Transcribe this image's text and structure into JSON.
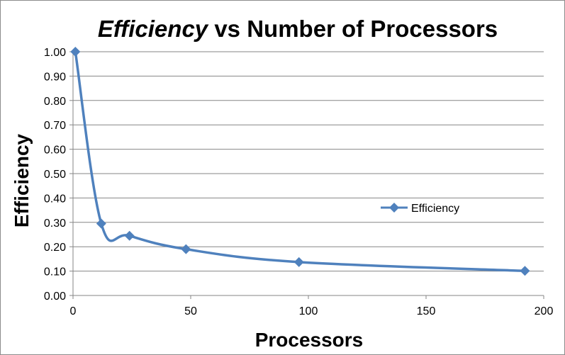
{
  "chart_data": {
    "type": "line",
    "title_em": "Efficiency",
    "title_rest": " vs Number of Processors",
    "xlabel": "Processors",
    "ylabel": "Efficiency",
    "xlim": [
      0,
      200
    ],
    "ylim": [
      0,
      1
    ],
    "x_ticks": [
      "0",
      "50",
      "100",
      "150",
      "200"
    ],
    "x_tick_values": [
      0,
      50,
      100,
      150,
      200
    ],
    "y_ticks": [
      "0.00",
      "0.10",
      "0.20",
      "0.30",
      "0.40",
      "0.50",
      "0.60",
      "0.70",
      "0.80",
      "0.90",
      "1.00"
    ],
    "y_tick_values": [
      0,
      0.1,
      0.2,
      0.3,
      0.4,
      0.5,
      0.6,
      0.7,
      0.8,
      0.9,
      1.0
    ],
    "grid": "horizontal",
    "legend_position": "right",
    "series": [
      {
        "name": "Efficiency",
        "color": "#4f81bd",
        "marker": "diamond",
        "x": [
          1,
          12,
          24,
          48,
          96,
          192
        ],
        "y": [
          1.0,
          0.295,
          0.245,
          0.19,
          0.137,
          0.101
        ]
      }
    ]
  }
}
